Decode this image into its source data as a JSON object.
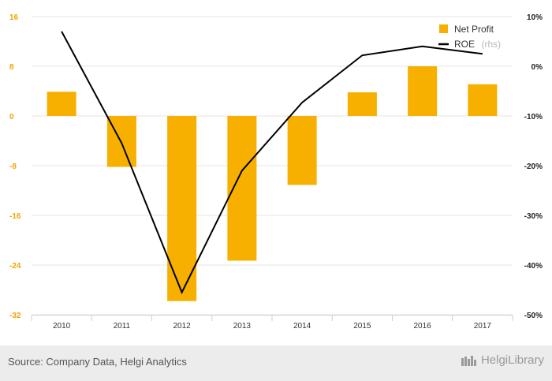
{
  "chart_data": {
    "type": "bar+line",
    "categories": [
      "2010",
      "2011",
      "2012",
      "2013",
      "2014",
      "2015",
      "2016",
      "2017"
    ],
    "series": [
      {
        "name": "Net Profit",
        "type": "bar",
        "axis": "left",
        "values": [
          3.9,
          -8.2,
          -29.8,
          -23.3,
          -11.1,
          3.8,
          8.0,
          5.1
        ]
      },
      {
        "name": "ROE",
        "name_suffix": "(rhs)",
        "type": "line",
        "axis": "right",
        "values": [
          7.0,
          -15.5,
          -45.5,
          -21.0,
          -7.3,
          2.2,
          4.0,
          2.5
        ]
      }
    ],
    "left_axis": {
      "ticks": [
        "16",
        "8",
        "0",
        "-8",
        "-16",
        "-24",
        "-32"
      ],
      "range": [
        -32,
        16
      ]
    },
    "right_axis": {
      "ticks": [
        "10%",
        "0%",
        "-10%",
        "-20%",
        "-30%",
        "-40%",
        "-50%"
      ],
      "range": [
        -50,
        10
      ]
    },
    "grid": true,
    "legend_position": "top-right",
    "colors": {
      "bar": "#f7b000",
      "line": "#000000",
      "left_ticks": "#f0a500",
      "grid": "#e6e6e6"
    }
  },
  "footer": {
    "source": "Source: Company Data, Helgi Analytics",
    "brand": "HelgiLibrary"
  }
}
